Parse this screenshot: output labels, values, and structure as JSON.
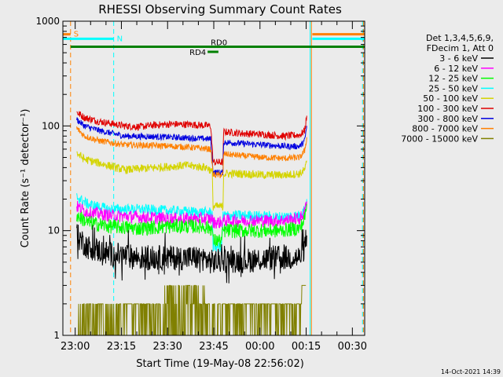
{
  "chart_data": {
    "type": "line",
    "title": "RHESSI Observing Summary Count Rates",
    "xlabel": "Start Time (19-May-08 22:56:02)",
    "ylabel": "Count Rate (s⁻¹ detector⁻¹)",
    "yscale": "log",
    "ylim": [
      1,
      1000
    ],
    "xlim_minutes_after_start": [
      0,
      98
    ],
    "y_ticks": [
      {
        "label": "1",
        "value": 1
      },
      {
        "label": "10",
        "value": 10
      },
      {
        "label": "100",
        "value": 100
      },
      {
        "label": "1000",
        "value": 1000
      }
    ],
    "x_ticks": [
      {
        "label": "23:00",
        "minute": 4
      },
      {
        "label": "23:15",
        "minute": 19
      },
      {
        "label": "23:30",
        "minute": 34
      },
      {
        "label": "23:45",
        "minute": 49
      },
      {
        "label": "00:00",
        "minute": 64
      },
      {
        "label": "00:15",
        "minute": 79
      },
      {
        "label": "00:30",
        "minute": 94
      }
    ],
    "legend": {
      "placement": "right",
      "header": [
        "Det 1,3,4,5,6,9,",
        "FDecim 1, Att 0"
      ],
      "entries": [
        {
          "name": "3 - 6 keV",
          "color": "#000000"
        },
        {
          "name": "6 - 12 keV",
          "color": "#ff00ff"
        },
        {
          "name": "12 - 25 keV",
          "color": "#00ff00"
        },
        {
          "name": "25 - 50 keV",
          "color": "#00ffff"
        },
        {
          "name": "50 - 100 keV",
          "color": "#d4d400"
        },
        {
          "name": "100 - 300 keV",
          "color": "#e00000"
        },
        {
          "name": "300 - 800 keV",
          "color": "#0000e0"
        },
        {
          "name": "800 - 7000 keV",
          "color": "#ff8000"
        },
        {
          "name": "7000 - 15000 keV",
          "color": "#808000"
        }
      ]
    },
    "series": [
      {
        "name": "100 - 300 keV",
        "color": "#e00000",
        "noise": 0.035,
        "points": [
          [
            4.5,
            135
          ],
          [
            7,
            120
          ],
          [
            12,
            110
          ],
          [
            20,
            100
          ],
          [
            25,
            98
          ],
          [
            30,
            102
          ],
          [
            35,
            104
          ],
          [
            42,
            103
          ],
          [
            48,
            100
          ],
          [
            48.8,
            45
          ],
          [
            52,
            45
          ],
          [
            52.2,
            88
          ],
          [
            58,
            85
          ],
          [
            65,
            83
          ],
          [
            72,
            80
          ],
          [
            77,
            82
          ],
          [
            78.5,
            90
          ],
          [
            79.2,
            125
          ]
        ]
      },
      {
        "name": "300 - 800 keV",
        "color": "#0000e0",
        "noise": 0.03,
        "points": [
          [
            4.5,
            115
          ],
          [
            7,
            100
          ],
          [
            12,
            90
          ],
          [
            20,
            80
          ],
          [
            30,
            79
          ],
          [
            40,
            77
          ],
          [
            48,
            75
          ],
          [
            48.8,
            36
          ],
          [
            52,
            36
          ],
          [
            52.2,
            70
          ],
          [
            58,
            68
          ],
          [
            65,
            66
          ],
          [
            72,
            64
          ],
          [
            77,
            64
          ],
          [
            78.5,
            72
          ],
          [
            79.2,
            100
          ]
        ]
      },
      {
        "name": "800 - 7000 keV",
        "color": "#ff8000",
        "noise": 0.03,
        "points": [
          [
            4.5,
            95
          ],
          [
            7,
            80
          ],
          [
            12,
            72
          ],
          [
            20,
            66
          ],
          [
            30,
            65
          ],
          [
            40,
            63
          ],
          [
            48,
            60
          ],
          [
            48.8,
            34
          ],
          [
            52,
            34
          ],
          [
            52.2,
            54
          ],
          [
            58,
            52
          ],
          [
            65,
            50
          ],
          [
            72,
            49
          ],
          [
            77,
            50
          ],
          [
            78.5,
            58
          ],
          [
            79.2,
            78
          ]
        ]
      },
      {
        "name": "50 - 100 keV",
        "color": "#d4d400",
        "noise": 0.04,
        "points": [
          [
            4.5,
            55
          ],
          [
            7,
            48
          ],
          [
            12,
            44
          ],
          [
            20,
            38
          ],
          [
            30,
            40
          ],
          [
            40,
            42
          ],
          [
            47,
            40
          ],
          [
            48.5,
            36
          ],
          [
            48.8,
            17
          ],
          [
            52,
            17
          ],
          [
            52.2,
            35
          ],
          [
            58,
            35
          ],
          [
            65,
            34
          ],
          [
            72,
            34
          ],
          [
            77,
            35
          ],
          [
            78.5,
            38
          ],
          [
            79.2,
            45
          ]
        ]
      },
      {
        "name": "25 - 50 keV",
        "color": "#00ffff",
        "noise": 0.05,
        "points": [
          [
            4.5,
            21
          ],
          [
            8,
            18
          ],
          [
            15,
            16
          ],
          [
            25,
            16
          ],
          [
            35,
            15.5
          ],
          [
            45,
            15
          ],
          [
            48.5,
            15
          ],
          [
            48.8,
            7
          ],
          [
            51.5,
            7
          ],
          [
            52,
            14
          ],
          [
            60,
            14
          ],
          [
            70,
            13.5
          ],
          [
            77,
            14
          ],
          [
            78.5,
            16
          ],
          [
            79.2,
            20
          ]
        ]
      },
      {
        "name": "6 - 12 keV",
        "color": "#ff00ff",
        "noise": 0.06,
        "points": [
          [
            4.5,
            17
          ],
          [
            8,
            15
          ],
          [
            15,
            14
          ],
          [
            25,
            13.5
          ],
          [
            35,
            13
          ],
          [
            45,
            13
          ],
          [
            48.5,
            13
          ],
          [
            48.8,
            12
          ],
          [
            51.5,
            12
          ],
          [
            52,
            12.5
          ],
          [
            60,
            12.5
          ],
          [
            70,
            12.5
          ],
          [
            77,
            13
          ],
          [
            78.5,
            15
          ],
          [
            79.2,
            19
          ]
        ]
      },
      {
        "name": "12 - 25 keV",
        "color": "#00ff00",
        "noise": 0.07,
        "points": [
          [
            4.5,
            14
          ],
          [
            8,
            12
          ],
          [
            15,
            11
          ],
          [
            25,
            10.5
          ],
          [
            35,
            11
          ],
          [
            45,
            11
          ],
          [
            48.5,
            10.5
          ],
          [
            48.8,
            8
          ],
          [
            51.5,
            8
          ],
          [
            52,
            10
          ],
          [
            60,
            10
          ],
          [
            70,
            10
          ],
          [
            77,
            10.5
          ],
          [
            78.5,
            13
          ],
          [
            79.2,
            18
          ]
        ]
      },
      {
        "name": "3 - 6 keV",
        "color": "#000000",
        "noise": 0.12,
        "points": [
          [
            4.5,
            9
          ],
          [
            8,
            7
          ],
          [
            15,
            6
          ],
          [
            25,
            5.5
          ],
          [
            35,
            5.5
          ],
          [
            45,
            5.5
          ],
          [
            48.5,
            5
          ],
          [
            52,
            5.2
          ],
          [
            60,
            5.2
          ],
          [
            70,
            5.5
          ],
          [
            77,
            5.5
          ],
          [
            78.5,
            7
          ],
          [
            79.2,
            9
          ]
        ]
      }
    ],
    "attenuator_series": {
      "name": "7000 - 15000 keV",
      "color": "#808000",
      "start_minute": 5,
      "end_minute": 79,
      "low_value": 1,
      "high_value": 2,
      "occasional_value": 3
    },
    "bars": [
      {
        "label": "S",
        "color": "#ff8000",
        "start_minute": 0,
        "end_minute": 2.5,
        "value": 750
      },
      {
        "label": "N",
        "color": "#00ffff",
        "start_minute": 0,
        "end_minute": 16.5,
        "value": 680
      },
      {
        "label": "",
        "color": "#008000",
        "start_minute": 2.5,
        "end_minute": 98,
        "value": 570
      },
      {
        "label": "RD0",
        "color": "#008000",
        "start_minute": 47.5,
        "end_minute": 51.5,
        "value": 570
      },
      {
        "label": "RD4",
        "color": "#008000",
        "start_minute": 47,
        "end_minute": 50.5,
        "value": 510
      },
      {
        "label": "",
        "color": "#ff8000",
        "start_minute": 81,
        "end_minute": 98,
        "value": 750
      },
      {
        "label": "",
        "color": "#00ffff",
        "start_minute": 81,
        "end_minute": 98,
        "value": 680
      }
    ],
    "vlines": [
      {
        "minute": 0,
        "color": "#00ffff",
        "dashed": false
      },
      {
        "minute": 2.5,
        "color": "#ff8000",
        "dashed": true
      },
      {
        "minute": 16.5,
        "color": "#00ffff",
        "dashed": true
      },
      {
        "minute": 80.3,
        "color": "#00ffff",
        "dashed": false
      },
      {
        "minute": 80.7,
        "color": "#ff8000",
        "dashed": false
      },
      {
        "minute": 97.3,
        "color": "#00ffff",
        "dashed": true
      },
      {
        "minute": 97.6,
        "color": "#ff8000",
        "dashed": true
      }
    ]
  },
  "footer": {
    "timestamp": "14-Oct-2021 14:39"
  }
}
